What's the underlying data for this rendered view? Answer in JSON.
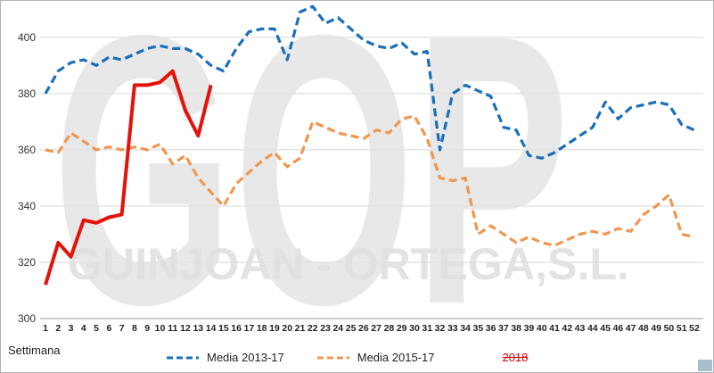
{
  "watermark": {
    "line1": "GOP",
    "line2": "GUINJOAN - ORTEGA,S.L."
  },
  "legend": {
    "items": [
      {
        "label": "Media 2013-17",
        "color": "#1a6fba",
        "style": "dashed"
      },
      {
        "label": "Media 2015-17",
        "color": "#f0964e",
        "style": "dashed"
      },
      {
        "label": "2018",
        "color": "#cc0000",
        "style": "strikethrough"
      }
    ]
  },
  "chart_data": {
    "type": "line",
    "title": "",
    "xlabel": "Settimana",
    "ylabel": "",
    "grid": "horizontal",
    "legend_position": "bottom",
    "yticks": [
      300,
      320,
      340,
      360,
      380,
      400
    ],
    "ylim": [
      300,
      412
    ],
    "x": [
      1,
      2,
      3,
      4,
      5,
      6,
      7,
      8,
      9,
      10,
      11,
      12,
      13,
      14,
      15,
      16,
      17,
      18,
      19,
      20,
      21,
      22,
      23,
      24,
      25,
      26,
      27,
      28,
      29,
      30,
      31,
      32,
      33,
      34,
      35,
      36,
      37,
      38,
      39,
      40,
      41,
      42,
      43,
      44,
      45,
      46,
      47,
      48,
      49,
      50,
      51,
      52
    ],
    "series": [
      {
        "name": "Media 2013-17",
        "color": "#1a6fba",
        "style": "dashed",
        "values": [
          380,
          388,
          391,
          392,
          390,
          393,
          392,
          394,
          396,
          397,
          396,
          396,
          394,
          390,
          388,
          396,
          402,
          403,
          403,
          392,
          409,
          411,
          405,
          407,
          403,
          399,
          397,
          396,
          398,
          394,
          395,
          360,
          380,
          383,
          381,
          379,
          368,
          367,
          358,
          357,
          359,
          362,
          365,
          368,
          377,
          371,
          375,
          376,
          377,
          376,
          369,
          367
        ]
      },
      {
        "name": "Media 2015-17",
        "color": "#f0964e",
        "style": "dashed",
        "values": [
          360,
          359,
          366,
          363,
          360,
          361,
          360,
          361,
          360,
          362,
          355,
          358,
          350,
          345,
          340,
          348,
          352,
          356,
          359,
          354,
          357,
          370,
          368,
          366,
          365,
          364,
          367,
          366,
          371,
          372,
          364,
          350,
          349,
          350,
          330,
          333,
          330,
          327,
          329,
          327,
          326,
          328,
          330,
          331,
          330,
          332,
          331,
          337,
          340,
          344,
          330,
          329
        ]
      },
      {
        "name": "2018",
        "color": "#e3120b",
        "style": "solid",
        "values": [
          312,
          327,
          322,
          335,
          334,
          336,
          337,
          383,
          383,
          384,
          388,
          374,
          365,
          383,
          null,
          null,
          null,
          null,
          null,
          null,
          null,
          null,
          null,
          null,
          null,
          null,
          null,
          null,
          null,
          null,
          null,
          null,
          null,
          null,
          null,
          null,
          null,
          null,
          null,
          null,
          null,
          null,
          null,
          null,
          null,
          null,
          null,
          null,
          null,
          null,
          null,
          null
        ]
      }
    ]
  }
}
